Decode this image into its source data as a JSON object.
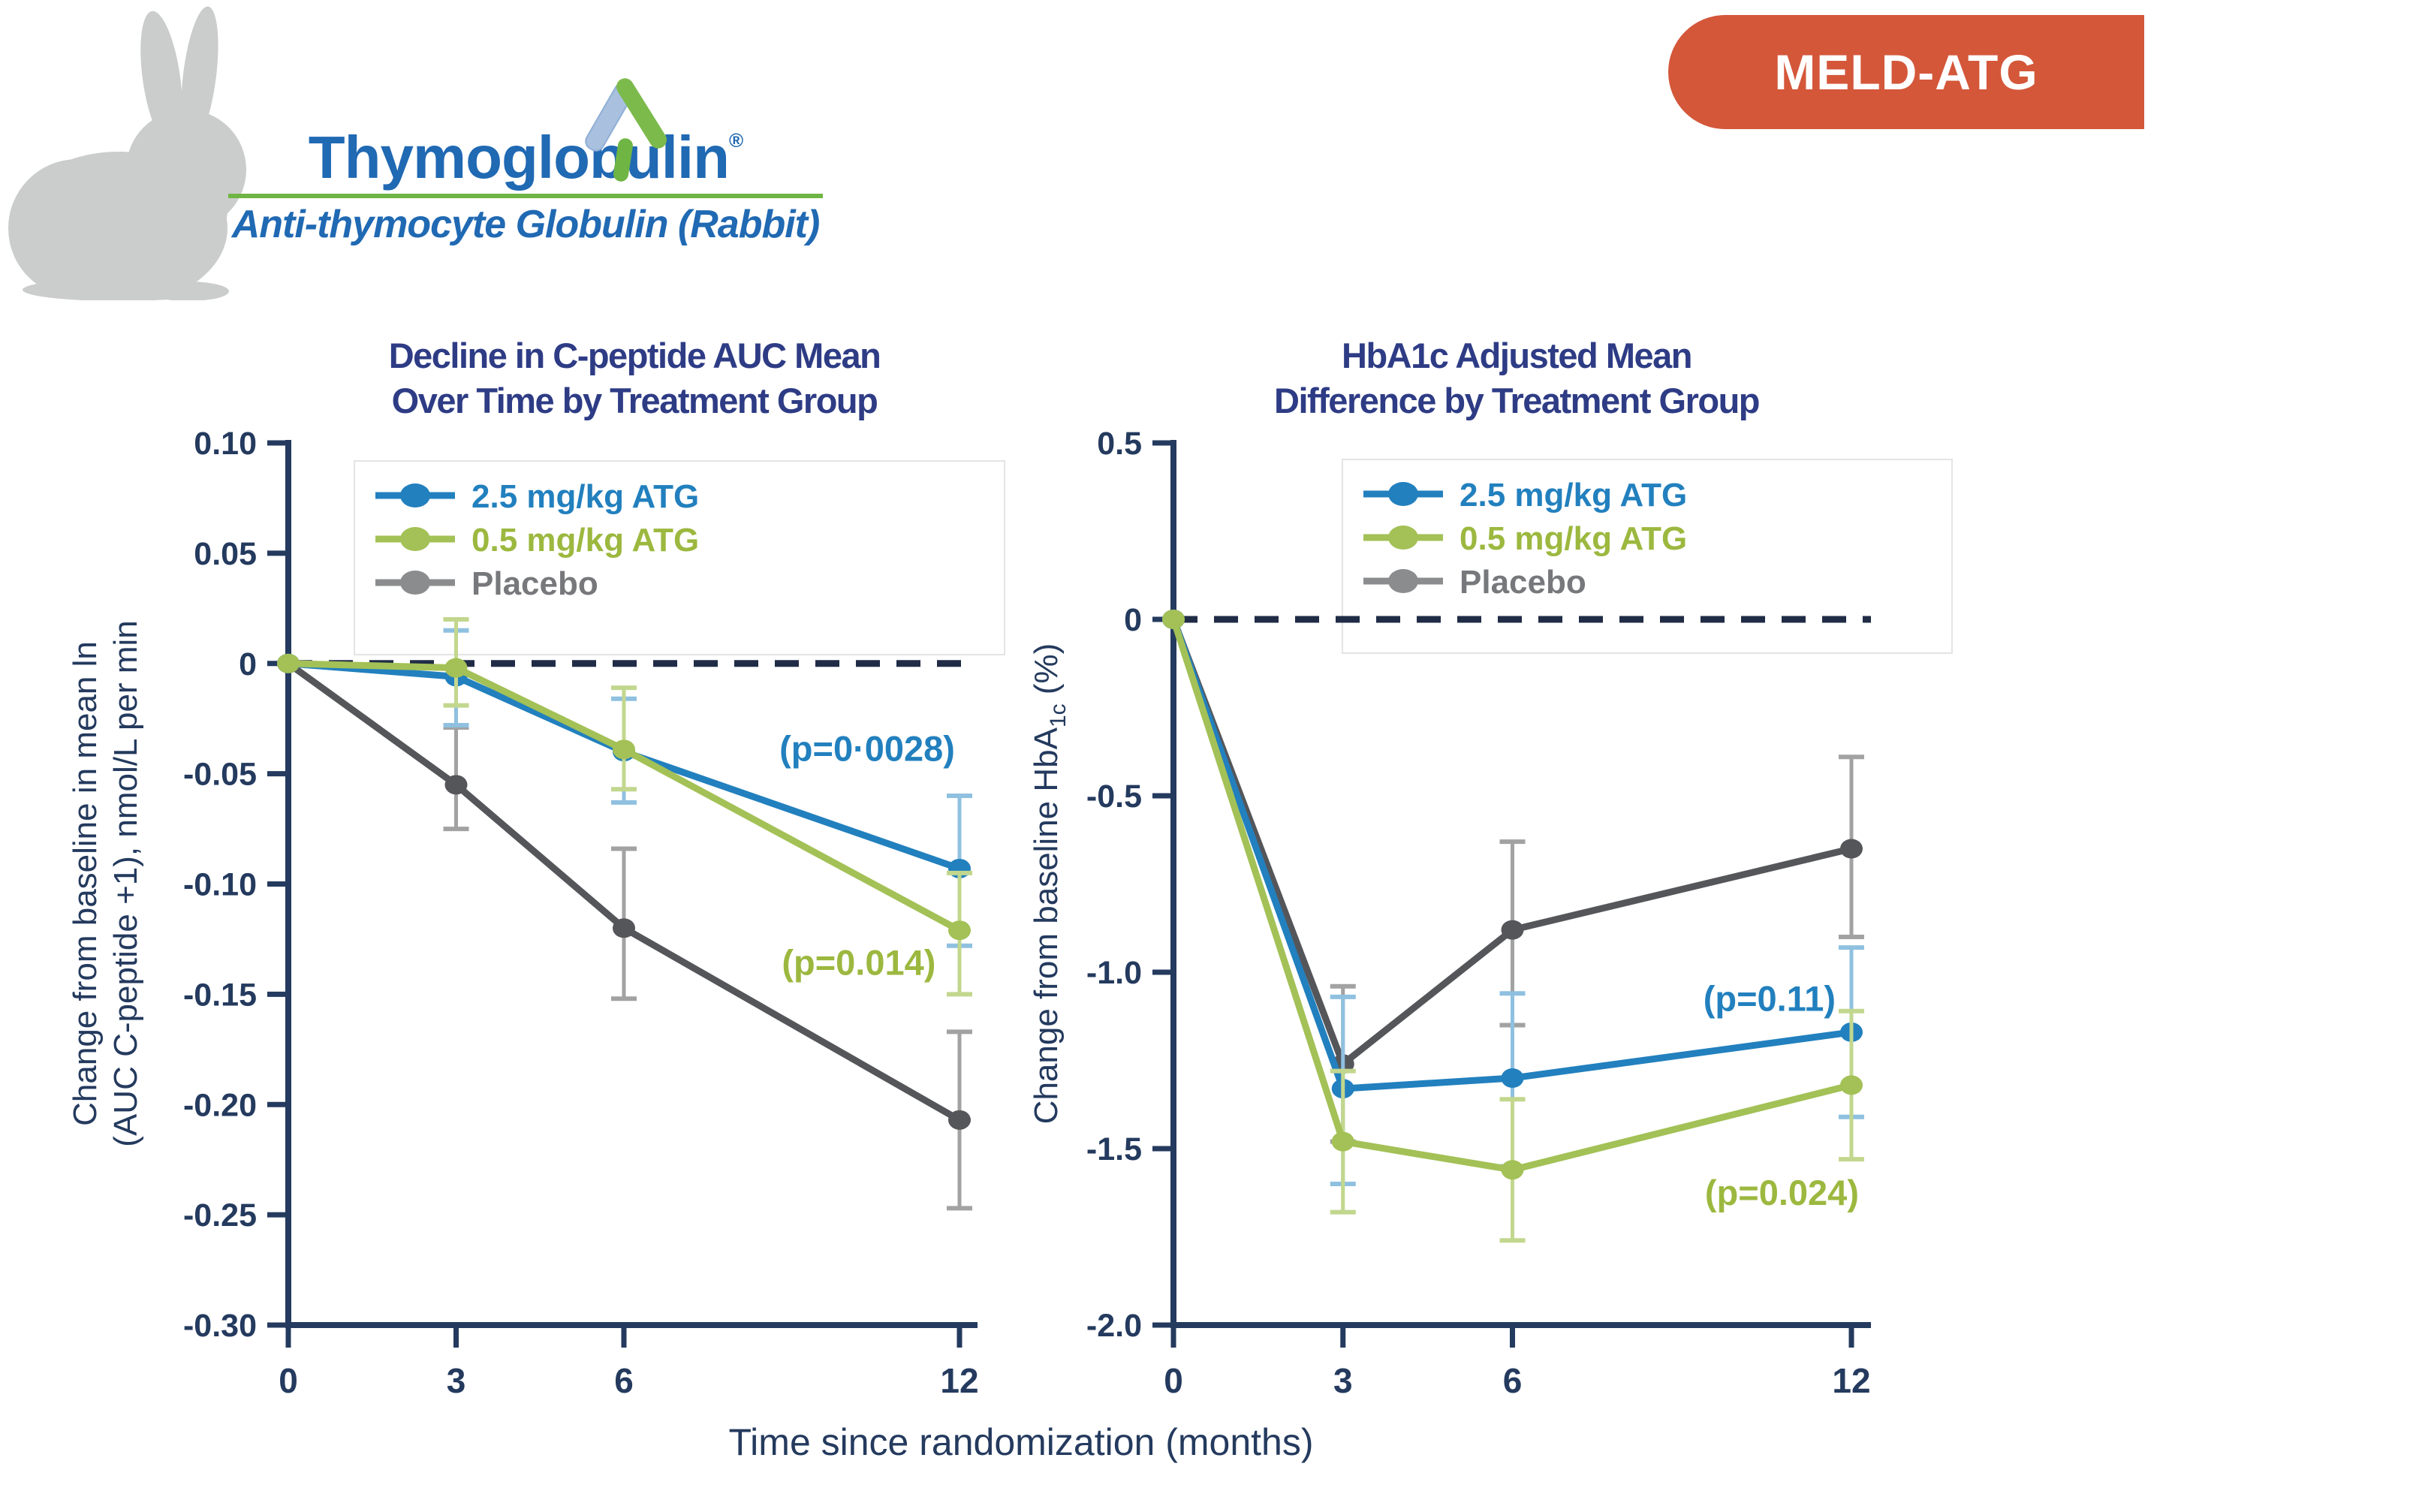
{
  "header": {
    "rabbit_icon_color": "#CBCDCC",
    "logo": {
      "brand": "Thymoglobulin",
      "registered_mark": "®",
      "subtitle": "Anti-thymocyte Globulin (Rabbit)",
      "brand_color": "#2069B3",
      "underline_color": "#6FB544"
    },
    "badge": {
      "label": "MELD-ATG",
      "background": "#D4573A",
      "text_color": "#FFFFFF"
    }
  },
  "colors": {
    "navy_title": "#2E3C85",
    "navy_axis": "#243A5E",
    "dashed_line": "#202C46",
    "blue": "#2280BE",
    "blue_light": "#8FC0E0",
    "green": "#A3C156",
    "green_text": "#9CB83F",
    "green_light": "#C2D78E",
    "gray_line": "#55565A",
    "gray_marker": "#8A8C8E",
    "gray_text": "#77787B",
    "gray_light": "#A2A2A2",
    "legend_box_border": "#E4E4E4"
  },
  "legend": {
    "items": [
      {
        "label": "2.5 mg/kg ATG",
        "color_key": "blue"
      },
      {
        "label": "0.5 mg/kg ATG",
        "color_key": "green"
      },
      {
        "label": "Placebo",
        "color_key": "gray"
      }
    ]
  },
  "xaxis_label": "Time since randomization (months)",
  "chart_data": [
    {
      "type": "line",
      "title_lines": [
        "Decline in C-peptide AUC Mean",
        "Over Time by Treatment Group"
      ],
      "ylabel_lines": [
        "Change from baseline in mean ln",
        "(AUC C-peptide +1), nmol/L per min"
      ],
      "x": [
        0,
        3,
        6,
        12
      ],
      "x_tick_labels": [
        "0",
        "3",
        "6",
        "12"
      ],
      "xlabel": "Time since randomization (months)",
      "ylim": [
        -0.3,
        0.1
      ],
      "y_ticks": [
        0.1,
        0.05,
        0,
        -0.05,
        -0.1,
        -0.15,
        -0.2,
        -0.25,
        -0.3
      ],
      "y_tick_labels": [
        "0.10",
        "0.05",
        "0",
        "-0.05",
        "-0.10",
        "-0.15",
        "-0.20",
        "-0.25",
        "-0.30"
      ],
      "zero_dashed_line": true,
      "grid": false,
      "legend_position": "upper-left-inside",
      "series": [
        {
          "name": "2.5 mg/kg ATG",
          "color_key": "blue",
          "values": [
            0,
            -0.006,
            -0.04,
            -0.093
          ],
          "error_low": [
            null,
            -0.028,
            -0.063,
            -0.128
          ],
          "error_high": [
            null,
            0.015,
            -0.016,
            -0.06
          ]
        },
        {
          "name": "0.5 mg/kg ATG",
          "color_key": "green",
          "values": [
            0,
            -0.002,
            -0.039,
            -0.121
          ],
          "error_low": [
            null,
            -0.019,
            -0.057,
            -0.15
          ],
          "error_high": [
            null,
            0.02,
            -0.011,
            -0.095
          ]
        },
        {
          "name": "Placebo",
          "color_key": "gray",
          "values": [
            0,
            -0.055,
            -0.12,
            -0.207
          ],
          "error_low": [
            null,
            -0.075,
            -0.152,
            -0.247
          ],
          "error_high": [
            null,
            -0.029,
            -0.084,
            -0.167
          ]
        }
      ],
      "annotations": [
        {
          "text": "(p=0·0028)",
          "color_key": "blue",
          "x": 10.35,
          "y": -0.039
        },
        {
          "text": "(p=0.014)",
          "color_key": "green",
          "x": 10.2,
          "y": -0.136
        }
      ]
    },
    {
      "type": "line",
      "title_lines": [
        "HbA1c Adjusted Mean",
        "Difference by Treatment Group"
      ],
      "ylabel_rich": {
        "pre": "Change from baseline HbA",
        "sub": "1c",
        "post": " (%)"
      },
      "x": [
        0,
        3,
        6,
        12
      ],
      "x_tick_labels": [
        "0",
        "3",
        "6",
        "12"
      ],
      "xlabel": "Time since randomization (months)",
      "ylim": [
        -2.0,
        0.5
      ],
      "y_ticks": [
        0.5,
        0,
        -0.5,
        -1.0,
        -1.5,
        -2.0
      ],
      "y_tick_labels": [
        "0.5",
        "0",
        "-0.5",
        "-1.0",
        "-1.5",
        "-2.0"
      ],
      "zero_dashed_line": true,
      "grid": false,
      "legend_position": "upper-left-inside",
      "series": [
        {
          "name": "2.5 mg/kg ATG",
          "color_key": "blue",
          "values": [
            0,
            -1.33,
            -1.3,
            -1.17
          ],
          "error_low": [
            null,
            -1.6,
            -1.55,
            -1.41
          ],
          "error_high": [
            null,
            -1.07,
            -1.06,
            -0.93
          ]
        },
        {
          "name": "0.5 mg/kg ATG",
          "color_key": "green",
          "values": [
            0,
            -1.48,
            -1.56,
            -1.32
          ],
          "error_low": [
            null,
            -1.68,
            -1.76,
            -1.53
          ],
          "error_high": [
            null,
            -1.28,
            -1.36,
            -1.11
          ]
        },
        {
          "name": "Placebo",
          "color_key": "gray",
          "values": [
            0,
            -1.26,
            -0.88,
            -0.65
          ],
          "error_low": [
            null,
            -1.48,
            -1.15,
            -0.9
          ],
          "error_high": [
            null,
            -1.04,
            -0.63,
            -0.39
          ]
        }
      ],
      "annotations": [
        {
          "text": "(p=0.11)",
          "color_key": "blue",
          "x": 10.55,
          "y": -1.078
        },
        {
          "text": "(p=0.024)",
          "color_key": "green",
          "x": 10.77,
          "y": -1.628
        }
      ]
    }
  ]
}
